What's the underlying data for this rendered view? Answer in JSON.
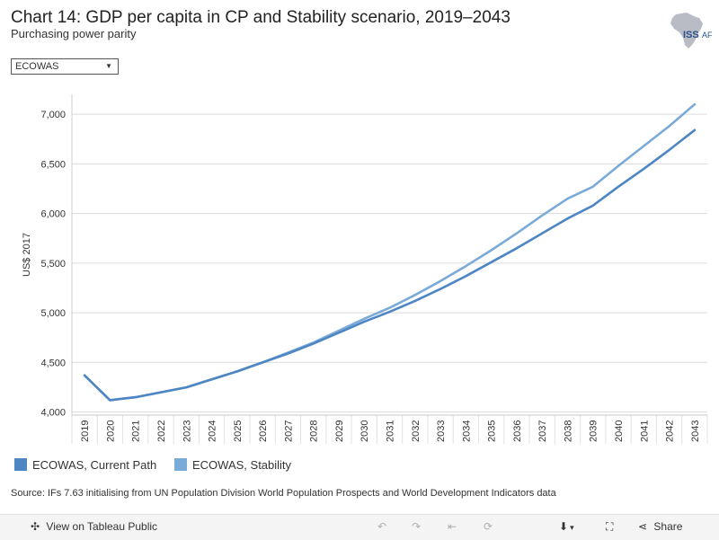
{
  "header": {
    "title": "Chart 14: GDP per capita in CP and Stability scenario, 2019–2043",
    "subtitle": "Purchasing power parity",
    "logo_text": "ISS",
    "logo_suffix": "AF"
  },
  "filter": {
    "selected": "ECOWAS"
  },
  "colors": {
    "current_path": "#4e86c4",
    "stability": "#7aaad8",
    "grid": "#dcdcdc"
  },
  "chart_data": {
    "type": "line",
    "title": "Chart 14: GDP per capita in CP and Stability scenario, 2019–2043",
    "xlabel": "",
    "ylabel": "US$ 2017",
    "ylim": [
      3970,
      7200
    ],
    "yticks": [
      4000,
      4500,
      5000,
      5500,
      6000,
      6500,
      7000
    ],
    "ytick_labels": [
      "4,000",
      "4,500",
      "5,000",
      "5,500",
      "6,000",
      "6,500",
      "7,000"
    ],
    "x": [
      2019,
      2020,
      2021,
      2022,
      2023,
      2024,
      2025,
      2026,
      2027,
      2028,
      2029,
      2030,
      2031,
      2032,
      2033,
      2034,
      2035,
      2036,
      2037,
      2038,
      2039,
      2040,
      2041,
      2042,
      2043
    ],
    "x_labels": [
      "2019",
      "2020",
      "2021",
      "2022",
      "2023",
      "2024",
      "2025",
      "2026",
      "2027",
      "2028",
      "2029",
      "2030",
      "2031",
      "2032",
      "2033",
      "2034",
      "2035",
      "2036",
      "2037",
      "2038",
      "2039",
      "2040",
      "2041",
      "2042",
      "2043"
    ],
    "series": [
      {
        "name": "ECOWAS, Current Path",
        "values": [
          4370,
          4120,
          4150,
          4200,
          4250,
          4330,
          4410,
          4500,
          4590,
          4690,
          4800,
          4910,
          5010,
          5120,
          5240,
          5370,
          5510,
          5650,
          5800,
          5950,
          6080,
          6270,
          6450,
          6640,
          6840
        ]
      },
      {
        "name": "ECOWAS, Stability",
        "values": [
          4370,
          4120,
          4150,
          4200,
          4250,
          4330,
          4410,
          4500,
          4600,
          4700,
          4820,
          4940,
          5050,
          5180,
          5320,
          5470,
          5630,
          5800,
          5980,
          6150,
          6270,
          6480,
          6680,
          6880,
          7100
        ]
      }
    ],
    "legend": "bottom-left"
  },
  "source": "Source: IFs 7.63 initialising from UN Population Division World Population Prospects and World Development Indicators data",
  "toolbar": {
    "view_label": "View on Tableau Public",
    "share_label": "Share"
  }
}
